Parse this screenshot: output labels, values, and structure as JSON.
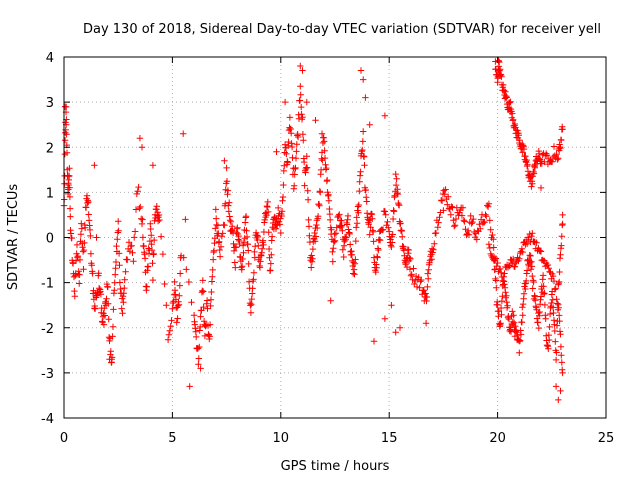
{
  "chart_data": {
    "type": "scatter",
    "title": "Day 130 of 2018, Sidereal Day-to-day VTEC variation (SDTVAR) for receiver yell",
    "xlabel": "GPS time / hours",
    "ylabel": "SDTVAR / TECUs",
    "xlim": [
      0,
      25
    ],
    "ylim": [
      -4,
      4
    ],
    "xticks": [
      0,
      5,
      10,
      15,
      20,
      25
    ],
    "yticks": [
      -4,
      -3,
      -2,
      -1,
      0,
      1,
      2,
      3,
      4
    ],
    "grid": true,
    "marker": "+",
    "color": "#ff0000",
    "series": [
      {
        "name": "SDTVAR",
        "trace": [
          [
            0.0,
            0.6
          ],
          [
            0.05,
            2.1
          ],
          [
            0.1,
            2.8
          ],
          [
            0.15,
            1.6
          ],
          [
            0.2,
            0.9
          ],
          [
            0.25,
            1.5
          ],
          [
            0.3,
            0.3
          ],
          [
            0.4,
            -0.5
          ],
          [
            0.5,
            -1.2
          ],
          [
            0.6,
            -0.3
          ],
          [
            0.7,
            -0.9
          ],
          [
            0.8,
            0.2
          ],
          [
            0.9,
            -0.6
          ],
          [
            1.0,
            0.6
          ],
          [
            1.1,
            0.9
          ],
          [
            1.2,
            0.1
          ],
          [
            1.3,
            -0.8
          ],
          [
            1.4,
            -1.5
          ],
          [
            1.5,
            -1.3
          ],
          [
            1.6,
            -0.9
          ],
          [
            1.7,
            -1.4
          ],
          [
            1.8,
            -1.9
          ],
          [
            1.9,
            -1.6
          ],
          [
            2.0,
            -1.0
          ],
          [
            2.1,
            -2.3
          ],
          [
            2.2,
            -2.8
          ],
          [
            2.3,
            -1.3
          ],
          [
            2.4,
            -0.5
          ],
          [
            2.5,
            0.4
          ],
          [
            2.6,
            -1.2
          ],
          [
            2.7,
            -1.6
          ],
          [
            2.8,
            -0.9
          ],
          [
            3.0,
            -0.2
          ],
          [
            3.2,
            -0.4
          ],
          [
            3.4,
            1.1
          ],
          [
            3.6,
            0.4
          ],
          [
            3.7,
            -0.3
          ],
          [
            3.8,
            -1.1
          ],
          [
            3.9,
            -0.4
          ],
          [
            4.0,
            0.3
          ],
          [
            4.1,
            -0.8
          ],
          [
            4.2,
            0.6
          ],
          [
            4.3,
            0.5
          ],
          [
            4.4,
            0.5
          ],
          [
            4.8,
            -2.1
          ],
          [
            5.0,
            -1.7
          ],
          [
            5.1,
            -1.0
          ],
          [
            5.2,
            -1.8
          ],
          [
            5.3,
            -1.4
          ],
          [
            5.4,
            -0.3
          ],
          [
            6.0,
            -1.6
          ],
          [
            6.1,
            -2.2
          ],
          [
            6.2,
            -2.7
          ],
          [
            6.3,
            -1.8
          ],
          [
            6.4,
            -1.0
          ],
          [
            6.5,
            -2.2
          ],
          [
            6.6,
            -1.5
          ],
          [
            6.7,
            -2.4
          ],
          [
            6.8,
            -1.2
          ],
          [
            6.9,
            -0.4
          ],
          [
            7.0,
            0.5
          ],
          [
            7.1,
            0.1
          ],
          [
            7.2,
            -0.5
          ],
          [
            7.4,
            0.4
          ],
          [
            7.5,
            1.4
          ],
          [
            7.6,
            0.7
          ],
          [
            7.7,
            0.2
          ],
          [
            7.8,
            0.0
          ],
          [
            7.9,
            -0.5
          ],
          [
            8.0,
            0.3
          ],
          [
            8.1,
            -0.2
          ],
          [
            8.2,
            -0.6
          ],
          [
            8.3,
            -0.1
          ],
          [
            8.4,
            0.5
          ],
          [
            8.5,
            -0.4
          ],
          [
            8.6,
            -1.6
          ],
          [
            8.7,
            -1.1
          ],
          [
            8.8,
            -0.3
          ],
          [
            8.9,
            0.2
          ],
          [
            9.0,
            -0.6
          ],
          [
            9.1,
            -0.4
          ],
          [
            9.2,
            0.0
          ],
          [
            9.3,
            0.5
          ],
          [
            9.4,
            0.8
          ],
          [
            9.5,
            -0.9
          ],
          [
            9.6,
            0.0
          ],
          [
            9.7,
            0.4
          ],
          [
            9.8,
            0.3
          ],
          [
            9.9,
            0.6
          ],
          [
            10.0,
            0.2
          ],
          [
            10.1,
            1.0
          ],
          [
            10.2,
            2.0
          ],
          [
            10.3,
            1.6
          ],
          [
            10.4,
            2.6
          ],
          [
            10.5,
            2.1
          ],
          [
            10.6,
            1.2
          ],
          [
            10.7,
            1.8
          ],
          [
            10.8,
            2.4
          ],
          [
            10.9,
            3.4
          ],
          [
            11.0,
            2.5
          ],
          [
            11.1,
            1.3
          ],
          [
            11.2,
            1.7
          ],
          [
            11.3,
            0.2
          ],
          [
            11.4,
            -0.6
          ],
          [
            11.5,
            -0.2
          ],
          [
            11.6,
            0.1
          ],
          [
            11.7,
            0.4
          ],
          [
            11.8,
            0.9
          ],
          [
            11.9,
            1.8
          ],
          [
            12.0,
            2.2
          ],
          [
            12.1,
            1.4
          ],
          [
            12.2,
            0.9
          ],
          [
            12.3,
            0.3
          ],
          [
            12.4,
            -0.4
          ],
          [
            12.5,
            0.1
          ],
          [
            12.7,
            0.4
          ],
          [
            12.8,
            0.2
          ],
          [
            12.9,
            -0.3
          ],
          [
            13.0,
            0.0
          ],
          [
            13.1,
            0.4
          ],
          [
            13.2,
            -0.2
          ],
          [
            13.3,
            -0.6
          ],
          [
            13.4,
            -0.8
          ],
          [
            13.5,
            0.3
          ],
          [
            13.6,
            0.8
          ],
          [
            13.7,
            1.8
          ],
          [
            13.8,
            2.2
          ],
          [
            13.9,
            1.0
          ],
          [
            14.0,
            0.5
          ],
          [
            14.1,
            0.2
          ],
          [
            14.2,
            0.5
          ],
          [
            14.3,
            -0.4
          ],
          [
            14.4,
            -0.7
          ],
          [
            14.5,
            -0.2
          ],
          [
            14.6,
            0.1
          ],
          [
            14.8,
            0.5
          ],
          [
            15.0,
            0.0
          ],
          [
            15.1,
            -0.3
          ],
          [
            15.2,
            0.6
          ],
          [
            15.3,
            1.3
          ],
          [
            15.4,
            1.0
          ],
          [
            15.5,
            0.4
          ],
          [
            15.6,
            0.0
          ],
          [
            15.7,
            -0.4
          ],
          [
            15.8,
            -0.6
          ],
          [
            15.9,
            -0.3
          ],
          [
            16.0,
            -0.7
          ],
          [
            16.2,
            -0.9
          ],
          [
            16.4,
            -1.0
          ],
          [
            16.6,
            -1.2
          ],
          [
            16.7,
            -1.4
          ],
          [
            16.8,
            -0.8
          ],
          [
            16.9,
            -0.5
          ],
          [
            17.0,
            -0.2
          ],
          [
            17.2,
            0.3
          ],
          [
            17.4,
            0.8
          ],
          [
            17.6,
            1.0
          ],
          [
            17.8,
            0.7
          ],
          [
            18.0,
            0.4
          ],
          [
            18.2,
            0.6
          ],
          [
            18.4,
            0.5
          ],
          [
            18.6,
            0.1
          ],
          [
            18.8,
            0.4
          ],
          [
            19.0,
            0.0
          ],
          [
            19.2,
            0.3
          ],
          [
            19.4,
            0.5
          ],
          [
            19.6,
            0.6
          ],
          [
            19.8,
            -0.2
          ],
          [
            19.9,
            -0.9
          ],
          [
            20.0,
            -1.6
          ],
          [
            20.1,
            -1.9
          ],
          [
            20.2,
            -1.5
          ],
          [
            20.3,
            -0.8
          ],
          [
            20.4,
            -1.3
          ],
          [
            20.5,
            -1.8
          ],
          [
            20.6,
            -2.0
          ],
          [
            20.7,
            -1.7
          ],
          [
            20.8,
            -2.1
          ],
          [
            20.9,
            -2.3
          ],
          [
            21.0,
            -2.4
          ],
          [
            21.1,
            -1.9
          ],
          [
            21.2,
            -1.4
          ],
          [
            21.3,
            -1.0
          ],
          [
            21.4,
            -0.6
          ],
          [
            21.5,
            -0.4
          ],
          [
            21.6,
            -0.9
          ],
          [
            21.7,
            -1.3
          ],
          [
            21.8,
            -1.6
          ],
          [
            21.9,
            -1.9
          ],
          [
            22.0,
            -1.3
          ],
          [
            22.1,
            -0.9
          ],
          [
            22.2,
            -1.7
          ],
          [
            22.3,
            -2.5
          ],
          [
            22.4,
            -2.0
          ],
          [
            22.5,
            -1.2
          ],
          [
            22.6,
            -1.8
          ],
          [
            22.7,
            -2.7
          ],
          [
            22.8,
            -1.2
          ],
          [
            22.9,
            -0.4
          ],
          [
            23.0,
            0.3
          ]
        ],
        "upper_branch": [
          [
            19.9,
            3.7
          ],
          [
            20.0,
            3.5
          ],
          [
            20.05,
            3.9
          ],
          [
            20.1,
            3.7
          ],
          [
            20.2,
            3.4
          ],
          [
            20.3,
            3.2
          ],
          [
            20.4,
            3.1
          ],
          [
            20.5,
            2.9
          ],
          [
            20.6,
            2.9
          ],
          [
            20.7,
            2.7
          ],
          [
            20.8,
            2.4
          ],
          [
            20.9,
            2.3
          ],
          [
            21.0,
            2.2
          ],
          [
            21.1,
            2.0
          ],
          [
            21.2,
            1.9
          ],
          [
            21.3,
            1.7
          ],
          [
            21.4,
            1.5
          ],
          [
            21.5,
            1.3
          ],
          [
            21.6,
            1.2
          ],
          [
            21.7,
            1.6
          ],
          [
            21.8,
            1.7
          ],
          [
            21.9,
            1.8
          ],
          [
            22.0,
            1.7
          ],
          [
            22.2,
            1.8
          ],
          [
            22.4,
            1.6
          ],
          [
            22.6,
            1.9
          ],
          [
            22.8,
            1.8
          ],
          [
            22.9,
            2.1
          ],
          [
            23.0,
            2.4
          ]
        ],
        "lower_branch": [
          [
            19.6,
            -0.2
          ],
          [
            19.8,
            -0.4
          ],
          [
            20.0,
            -0.6
          ],
          [
            20.2,
            -0.9
          ],
          [
            20.4,
            -0.7
          ],
          [
            20.6,
            -0.5
          ],
          [
            20.8,
            -0.6
          ],
          [
            21.0,
            -0.4
          ],
          [
            21.2,
            -0.2
          ],
          [
            21.4,
            0.0
          ],
          [
            21.6,
            0.0
          ],
          [
            21.8,
            -0.2
          ],
          [
            22.0,
            -0.4
          ],
          [
            22.2,
            -0.6
          ],
          [
            22.4,
            -0.7
          ],
          [
            22.6,
            -1.0
          ],
          [
            22.8,
            -1.5
          ],
          [
            22.9,
            -2.2
          ],
          [
            23.0,
            -3.0
          ]
        ],
        "isolated_points": [
          [
            0.05,
            2.9
          ],
          [
            0.1,
            2.5
          ],
          [
            0.2,
            1.2
          ],
          [
            1.4,
            1.6
          ],
          [
            1.5,
            0.0
          ],
          [
            2.2,
            -2.7
          ],
          [
            3.5,
            2.2
          ],
          [
            3.6,
            2.0
          ],
          [
            4.1,
            1.6
          ],
          [
            5.5,
            2.3
          ],
          [
            5.6,
            0.4
          ],
          [
            7.4,
            1.7
          ],
          [
            9.8,
            1.9
          ],
          [
            10.2,
            3.0
          ],
          [
            10.9,
            3.8
          ],
          [
            11.0,
            3.7
          ],
          [
            11.2,
            3.0
          ],
          [
            11.6,
            2.6
          ],
          [
            11.9,
            2.3
          ],
          [
            12.3,
            -1.4
          ],
          [
            13.7,
            3.7
          ],
          [
            13.8,
            3.5
          ],
          [
            13.9,
            3.1
          ],
          [
            14.1,
            2.5
          ],
          [
            14.3,
            -2.3
          ],
          [
            14.8,
            2.7
          ],
          [
            14.8,
            -1.8
          ],
          [
            15.1,
            -1.5
          ],
          [
            15.3,
            -2.1
          ],
          [
            15.5,
            -2.0
          ],
          [
            16.7,
            -1.9
          ],
          [
            17.5,
            0.6
          ],
          [
            19.9,
            3.9
          ],
          [
            21.7,
            1.6
          ],
          [
            22.0,
            1.1
          ],
          [
            22.7,
            -3.3
          ],
          [
            22.8,
            -3.6
          ],
          [
            22.9,
            -3.4
          ],
          [
            5.8,
            -3.3
          ],
          [
            6.3,
            -2.9
          ],
          [
            2.1,
            -2.7
          ],
          [
            23.0,
            0.5
          ]
        ]
      }
    ]
  }
}
